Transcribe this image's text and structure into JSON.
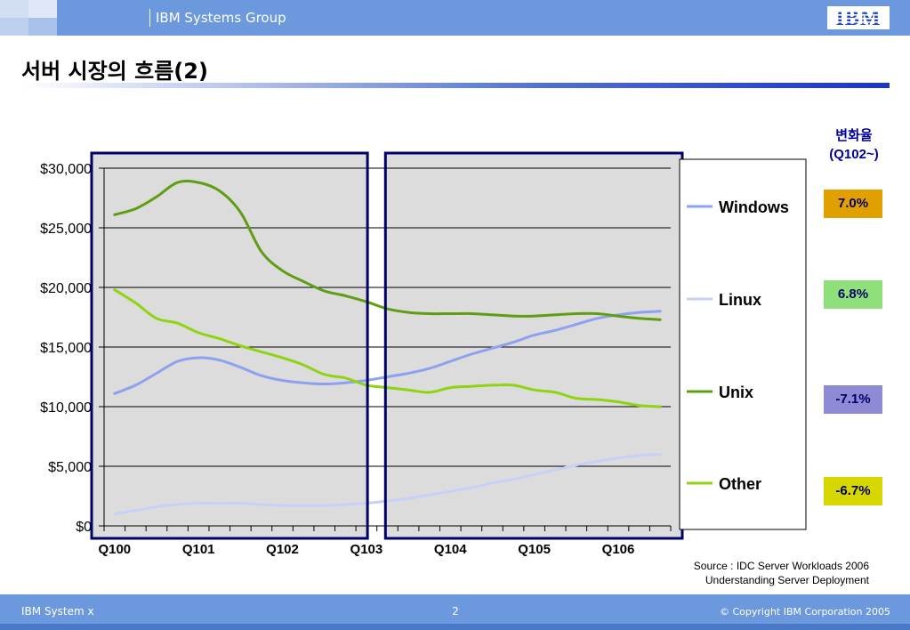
{
  "header": {
    "group_label": "IBM Systems Group",
    "logo_text": "IBM"
  },
  "slide": {
    "title": "서버 시장의 흐름(2)"
  },
  "change_rates": {
    "heading_line1": "변화율",
    "heading_line2": "(Q102~)",
    "items": [
      {
        "series": "Windows",
        "value": "7.0%",
        "color": "#e2a000"
      },
      {
        "series": "Linux",
        "value": "6.8%",
        "color": "#8fe07a"
      },
      {
        "series": "Unix",
        "value": "-7.1%",
        "color": "#8e8ad6"
      },
      {
        "series": "Other",
        "value": "-6.7%",
        "color": "#d6d600"
      }
    ]
  },
  "chart_data": {
    "type": "line",
    "title": "",
    "xlabel": "",
    "ylabel": "",
    "ylim": [
      0,
      30000
    ],
    "yticks": [
      "$0",
      "$5,000",
      "$10,000",
      "$15,000",
      "$20,000",
      "$25,000",
      "$30,000"
    ],
    "ytick_values": [
      0,
      5000,
      10000,
      15000,
      20000,
      25000,
      30000
    ],
    "xtick_labels": [
      "Q100",
      "Q101",
      "Q102",
      "Q103",
      "Q104",
      "Q105",
      "Q106"
    ],
    "x": [
      "Q100",
      "Q200",
      "Q300",
      "Q400",
      "Q101",
      "Q201",
      "Q301",
      "Q401",
      "Q102",
      "Q202",
      "Q302",
      "Q402",
      "Q103",
      "Q203",
      "Q303",
      "Q403",
      "Q104",
      "Q204",
      "Q304",
      "Q404",
      "Q105",
      "Q205",
      "Q305",
      "Q405",
      "Q106",
      "Q206",
      "Q306"
    ],
    "grid": true,
    "legend_position": "right",
    "highlight_ranges": [
      {
        "from": "Q100",
        "to": "Q402"
      },
      {
        "from": "Q303",
        "to": "Q306"
      }
    ],
    "series": [
      {
        "name": "Windows",
        "color": "#8ea1ee",
        "values": [
          11100,
          11800,
          12800,
          13800,
          14100,
          13900,
          13300,
          12600,
          12200,
          12000,
          11900,
          12000,
          12200,
          12500,
          12800,
          13200,
          13800,
          14400,
          14900,
          15400,
          16000,
          16400,
          16900,
          17400,
          17700,
          17900,
          18000
        ]
      },
      {
        "name": "Linux",
        "color": "#c9d0f8",
        "values": [
          1000,
          1300,
          1600,
          1800,
          1900,
          1900,
          1900,
          1800,
          1700,
          1700,
          1700,
          1800,
          1900,
          2100,
          2300,
          2600,
          2900,
          3200,
          3600,
          3900,
          4300,
          4700,
          5100,
          5400,
          5700,
          5900,
          6000
        ]
      },
      {
        "name": "Unix",
        "color": "#5f9d13",
        "values": [
          26100,
          26600,
          27600,
          28800,
          28800,
          28100,
          26300,
          23000,
          21400,
          20500,
          19700,
          19300,
          18800,
          18200,
          17900,
          17800,
          17800,
          17800,
          17700,
          17600,
          17600,
          17700,
          17800,
          17800,
          17600,
          17400,
          17300
        ]
      },
      {
        "name": "Other",
        "color": "#8fd411",
        "values": [
          19800,
          18700,
          17400,
          17000,
          16200,
          15700,
          15100,
          14600,
          14100,
          13500,
          12700,
          12400,
          11800,
          11600,
          11400,
          11200,
          11600,
          11700,
          11800,
          11800,
          11400,
          11200,
          10700,
          10600,
          10400,
          10100,
          10000
        ]
      }
    ]
  },
  "source": {
    "line1": "Source : IDC Server Workloads 2006",
    "line2": "Understanding Server Deployment"
  },
  "footer": {
    "left": "IBM System x",
    "page": "2",
    "right": "© Copyright IBM Corporation 2005"
  }
}
